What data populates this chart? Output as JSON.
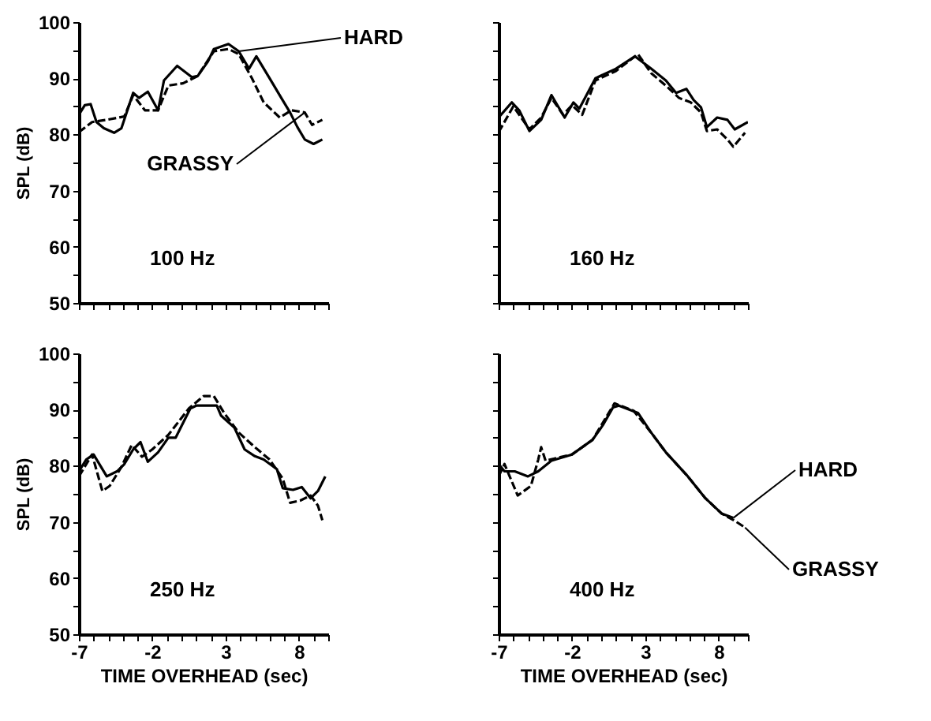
{
  "chart_data": [
    {
      "type": "line",
      "ylabel": "SPL (dB)",
      "annotations": [
        "100 Hz"
      ],
      "xlim": [
        -7,
        10
      ],
      "ylim": [
        50,
        100
      ],
      "tick_labels": "y",
      "xticks": [
        -7,
        {
          "value": -6,
          "label": null
        },
        {
          "value": -5,
          "label": null
        },
        {
          "value": -4,
          "label": null
        },
        {
          "value": -3,
          "label": null
        },
        -2,
        {
          "value": -1,
          "label": null
        },
        {
          "value": 0,
          "label": null
        },
        {
          "value": 1,
          "label": null
        },
        {
          "value": 2,
          "label": null
        },
        3,
        {
          "value": 4,
          "label": null
        },
        {
          "value": 5,
          "label": null
        },
        {
          "value": 6,
          "label": null
        },
        {
          "value": 7,
          "label": null
        },
        8,
        {
          "value": 9,
          "label": null
        },
        {
          "value": 10,
          "label": null
        }
      ],
      "yticks": [
        50,
        {
          "value": 55,
          "label": null
        },
        60,
        {
          "value": 65,
          "label": null
        },
        70,
        {
          "value": 75,
          "label": null
        },
        80,
        {
          "value": 85,
          "label": null
        },
        90,
        {
          "value": 95,
          "label": null
        },
        100
      ],
      "series": [
        {
          "name": "HARD",
          "color": "#000000",
          "line_style": "solid",
          "x": [
            -7,
            -6.6,
            -6.2,
            -5.8,
            -5.3,
            -4.6,
            -4.1,
            -3.3,
            -2.9,
            -2.3,
            -1.6,
            -1.2,
            -0.3,
            0.7,
            1.1,
            1.8,
            2.2,
            3.2,
            3.9,
            4.6,
            5.1,
            6.0,
            6.8,
            7.4,
            7.9,
            8.4,
            9.0,
            9.6
          ],
          "values": [
            83.5,
            85.2,
            85.4,
            82.2,
            81.1,
            80.3,
            81.1,
            87.4,
            86.5,
            87.6,
            84.3,
            89.6,
            92.2,
            90.2,
            90.4,
            93.0,
            95.2,
            96.1,
            94.8,
            91.7,
            93.9,
            90.0,
            86.5,
            83.9,
            81.3,
            79.1,
            78.3,
            79.1
          ]
        },
        {
          "name": "GRASSY",
          "color": "#000000",
          "line_style": "dashed",
          "x": [
            -7,
            -6.1,
            -5.1,
            -3.9,
            -3.3,
            -2.5,
            -1.6,
            -0.9,
            0.1,
            1.1,
            2.2,
            3.2,
            3.9,
            4.8,
            5.6,
            6.7,
            7.5,
            8.4,
            8.9,
            9.6
          ],
          "values": [
            80.4,
            82.2,
            82.6,
            83.2,
            87.0,
            84.3,
            84.3,
            88.7,
            89.1,
            90.4,
            94.8,
            95.2,
            94.3,
            90.0,
            85.7,
            83.0,
            84.3,
            83.9,
            81.7,
            82.6
          ]
        }
      ]
    },
    {
      "type": "line",
      "annotations": [
        "160 Hz"
      ],
      "xlim": [
        -7,
        10
      ],
      "ylim": [
        50,
        100
      ],
      "tick_labels": false,
      "xticks": [
        -7,
        {
          "value": -6,
          "label": null
        },
        {
          "value": -5,
          "label": null
        },
        {
          "value": -4,
          "label": null
        },
        {
          "value": -3,
          "label": null
        },
        -2,
        {
          "value": -1,
          "label": null
        },
        {
          "value": 0,
          "label": null
        },
        {
          "value": 1,
          "label": null
        },
        {
          "value": 2,
          "label": null
        },
        3,
        {
          "value": 4,
          "label": null
        },
        {
          "value": 5,
          "label": null
        },
        {
          "value": 6,
          "label": null
        },
        {
          "value": 7,
          "label": null
        },
        8,
        {
          "value": 9,
          "label": null
        },
        {
          "value": 10,
          "label": null
        }
      ],
      "yticks": [
        50,
        {
          "value": 55,
          "label": null
        },
        60,
        {
          "value": 65,
          "label": null
        },
        70,
        {
          "value": 75,
          "label": null
        },
        80,
        {
          "value": 85,
          "label": null
        },
        90,
        {
          "value": 95,
          "label": null
        },
        100
      ],
      "series": [
        {
          "color": "#000000",
          "line_style": "solid",
          "x": [
            -7,
            -6.1,
            -5.6,
            -4.9,
            -4.1,
            -3.4,
            -2.5,
            -1.9,
            -1.5,
            -0.4,
            1.0,
            2.3,
            3.4,
            4.4,
            5.1,
            5.8,
            6.3,
            6.8,
            7.2,
            7.9,
            8.6,
            9.1,
            10.0
          ],
          "values": [
            83.0,
            85.7,
            84.3,
            80.6,
            82.6,
            87.0,
            83.0,
            85.7,
            84.6,
            90.0,
            91.7,
            93.9,
            91.7,
            89.6,
            87.4,
            88.1,
            86.1,
            84.8,
            81.3,
            83.0,
            82.6,
            80.9,
            82.2
          ]
        },
        {
          "color": "#000000",
          "line_style": "dashed",
          "x": [
            -7,
            -6.0,
            -4.9,
            -4.1,
            -3.4,
            -2.6,
            -2.0,
            -1.3,
            -0.4,
            1.0,
            2.5,
            3.4,
            4.4,
            5.3,
            6.1,
            6.8,
            7.2,
            7.9,
            8.6,
            9.0,
            9.8
          ],
          "values": [
            80.4,
            85.0,
            80.9,
            83.0,
            86.5,
            83.5,
            85.2,
            83.5,
            89.6,
            91.3,
            94.3,
            90.9,
            88.7,
            86.5,
            85.7,
            83.9,
            80.6,
            80.9,
            79.1,
            77.8,
            80.3
          ]
        }
      ]
    },
    {
      "type": "line",
      "xlabel": "TIME OVERHEAD (sec)",
      "ylabel": "SPL (dB)",
      "annotations": [
        "250 Hz"
      ],
      "xlim": [
        -7,
        10
      ],
      "ylim": [
        50,
        100
      ],
      "xticks": [
        -7,
        {
          "value": -6,
          "label": null
        },
        {
          "value": -5,
          "label": null
        },
        {
          "value": -4,
          "label": null
        },
        {
          "value": -3,
          "label": null
        },
        -2,
        {
          "value": -1,
          "label": null
        },
        {
          "value": 0,
          "label": null
        },
        {
          "value": 1,
          "label": null
        },
        {
          "value": 2,
          "label": null
        },
        3,
        {
          "value": 4,
          "label": null
        },
        {
          "value": 5,
          "label": null
        },
        {
          "value": 6,
          "label": null
        },
        {
          "value": 7,
          "label": null
        },
        8,
        {
          "value": 9,
          "label": null
        },
        {
          "value": 10,
          "label": null
        }
      ],
      "yticks": [
        50,
        {
          "value": 55,
          "label": null
        },
        60,
        {
          "value": 65,
          "label": null
        },
        70,
        {
          "value": 75,
          "label": null
        },
        80,
        {
          "value": 85,
          "label": null
        },
        90,
        {
          "value": 95,
          "label": null
        },
        100
      ],
      "series": [
        {
          "color": "#000000",
          "line_style": "solid",
          "x": [
            -7,
            -6.5,
            -6.0,
            -5.1,
            -4.4,
            -3.9,
            -3.3,
            -2.8,
            -2.3,
            -1.6,
            -0.9,
            -0.4,
            0.6,
            1.0,
            2.4,
            2.7,
            3.6,
            4.3,
            5.0,
            5.6,
            6.5,
            6.9,
            7.6,
            8.2,
            8.8,
            9.3,
            9.8
          ],
          "values": [
            79.0,
            81.1,
            82.0,
            78.1,
            79.0,
            80.3,
            82.9,
            84.2,
            80.7,
            82.4,
            85.0,
            85.0,
            90.2,
            90.7,
            90.7,
            88.9,
            86.8,
            82.9,
            81.7,
            81.1,
            79.4,
            76.0,
            75.7,
            76.2,
            74.2,
            75.5,
            78.1
          ]
        },
        {
          "color": "#000000",
          "line_style": "dashed",
          "x": [
            -7,
            -6.1,
            -5.4,
            -4.9,
            -4.1,
            -3.4,
            -2.7,
            -2.0,
            -0.9,
            0.5,
            1.5,
            2.2,
            2.9,
            3.9,
            5.0,
            6.0,
            6.9,
            7.4,
            8.1,
            8.8,
            9.3,
            9.6
          ],
          "values": [
            78.1,
            82.0,
            75.5,
            76.4,
            79.8,
            83.7,
            81.6,
            82.9,
            85.5,
            90.2,
            92.4,
            92.4,
            89.4,
            85.9,
            83.3,
            81.1,
            77.7,
            73.4,
            73.8,
            74.7,
            72.9,
            70.3
          ]
        }
      ]
    },
    {
      "type": "line",
      "xlabel": "TIME OVERHEAD (sec)",
      "annotations": [
        "400 Hz"
      ],
      "xlim": [
        -7,
        10
      ],
      "ylim": [
        50,
        100
      ],
      "tick_labels": "x",
      "xticks": [
        -7,
        {
          "value": -6,
          "label": null
        },
        {
          "value": -5,
          "label": null
        },
        {
          "value": -4,
          "label": null
        },
        {
          "value": -3,
          "label": null
        },
        -2,
        {
          "value": -1,
          "label": null
        },
        {
          "value": 0,
          "label": null
        },
        {
          "value": 1,
          "label": null
        },
        {
          "value": 2,
          "label": null
        },
        3,
        {
          "value": 4,
          "label": null
        },
        {
          "value": 5,
          "label": null
        },
        {
          "value": 6,
          "label": null
        },
        {
          "value": 7,
          "label": null
        },
        8,
        {
          "value": 9,
          "label": null
        },
        {
          "value": 10,
          "label": null
        }
      ],
      "yticks": [
        50,
        {
          "value": 55,
          "label": null
        },
        60,
        {
          "value": 65,
          "label": null
        },
        70,
        {
          "value": 75,
          "label": null
        },
        80,
        {
          "value": 85,
          "label": null
        },
        90,
        {
          "value": 95,
          "label": null
        },
        100
      ],
      "series": [
        {
          "name": "HARD",
          "color": "#000000",
          "line_style": "solid",
          "x": [
            -7,
            -6.6,
            -5.9,
            -5.0,
            -4.3,
            -3.4,
            -2.0,
            -0.6,
            0.1,
            0.8,
            1.2,
            2.5,
            3.4,
            4.4,
            5.9,
            7.1,
            8.2,
            9.0
          ],
          "values": [
            80.3,
            79.0,
            79.0,
            78.1,
            79.0,
            80.9,
            82.0,
            84.6,
            87.2,
            90.4,
            90.7,
            89.4,
            85.9,
            82.4,
            78.1,
            74.2,
            71.5,
            70.7
          ]
        },
        {
          "name": "GRASSY",
          "color": "#000000",
          "line_style": "dashed",
          "x": [
            -7,
            -6.6,
            -5.7,
            -4.8,
            -4.3,
            -4.1,
            -3.8,
            -2.0,
            -0.6,
            0.9,
            2.2,
            3.4,
            4.4,
            5.9,
            7.1,
            8.2,
            9.1,
            9.8
          ],
          "values": [
            78.1,
            80.3,
            74.7,
            76.4,
            81.1,
            83.3,
            80.9,
            82.0,
            84.6,
            91.1,
            89.8,
            85.9,
            82.4,
            78.1,
            74.2,
            71.5,
            70.2,
            69.0
          ]
        }
      ]
    }
  ]
}
